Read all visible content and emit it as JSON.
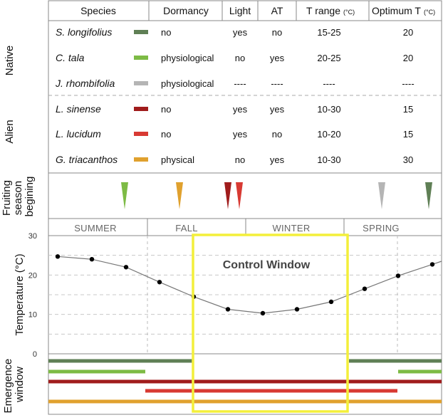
{
  "table": {
    "headers": {
      "species": "Species",
      "dormancy": "Dormancy",
      "light": "Light",
      "at": "AT",
      "trange": "T range",
      "trange_unit": "(°C)",
      "optimum": "Optimum T",
      "optimum_unit": "(°C)"
    },
    "groups": {
      "native": "Native",
      "alien": "Alien"
    },
    "rows": [
      {
        "species": "S. longifolius",
        "color": "#5f7f55",
        "dormancy": "no",
        "light": "yes",
        "at": "no",
        "trange": "15-25",
        "optimum": "20"
      },
      {
        "species": "C. tala",
        "color": "#7dbb45",
        "dormancy": "physiological",
        "light": "no",
        "at": "yes",
        "trange": "20-25",
        "optimum": "20"
      },
      {
        "species": "J. rhombifolia",
        "color": "#b5b5b5",
        "dormancy": "physiological",
        "light": "----",
        "at": "----",
        "trange": "----",
        "optimum": "----"
      },
      {
        "species": "L. sinense",
        "color": "#a01c1c",
        "dormancy": "no",
        "light": "yes",
        "at": "yes",
        "trange": "10-30",
        "optimum": "15"
      },
      {
        "species": "L. lucidum",
        "color": "#d83a33",
        "dormancy": "no",
        "light": "yes",
        "at": "no",
        "trange": "10-20",
        "optimum": "15"
      },
      {
        "species": "G. triacanthos",
        "color": "#e0a12e",
        "dormancy": "physical",
        "light": "no",
        "at": "yes",
        "trange": "10-30",
        "optimum": "30"
      }
    ]
  },
  "fruiting": {
    "label_lines": [
      "Fruiting",
      "season",
      "begining"
    ],
    "markers": [
      {
        "species": "C. tala",
        "x": 175,
        "color": "#7dbb45"
      },
      {
        "species": "G. triacanthos",
        "x": 252,
        "color": "#e0a12e"
      },
      {
        "species": "L. sinense",
        "x": 320,
        "color": "#a01c1c"
      },
      {
        "species": "L. lucidum",
        "x": 336,
        "color": "#d83a33"
      },
      {
        "species": "J. rhombifolia",
        "x": 536,
        "color": "#b5b5b5"
      },
      {
        "species": "S. longifolius",
        "x": 602,
        "color": "#5f7f55"
      }
    ]
  },
  "seasons": [
    "SUMMER",
    "FALL",
    "WINTER",
    "SPRING"
  ],
  "chart_data": {
    "type": "line",
    "ylabel": "Temperature (°C)",
    "yticks": [
      0,
      10,
      20,
      30
    ],
    "ylim": [
      0,
      30
    ],
    "points": [
      {
        "x": 81,
        "y": 24.7
      },
      {
        "x": 129,
        "y": 24.0
      },
      {
        "x": 177,
        "y": 22.0
      },
      {
        "x": 224,
        "y": 18.2
      },
      {
        "x": 272,
        "y": 14.5
      },
      {
        "x": 320,
        "y": 11.3
      },
      {
        "x": 369,
        "y": 10.3
      },
      {
        "x": 417,
        "y": 11.3
      },
      {
        "x": 465,
        "y": 13.2
      },
      {
        "x": 512,
        "y": 16.5
      },
      {
        "x": 559,
        "y": 19.8
      },
      {
        "x": 607,
        "y": 22.7
      }
    ],
    "line_end_y": 23.5,
    "control_window_label": "Control Window"
  },
  "emergence": {
    "label_lines": [
      "Emergence",
      "window"
    ],
    "bars": [
      {
        "species": "S. longifolius",
        "color": "#5f7f55",
        "ranges": [
          [
            68,
            270
          ],
          [
            490,
            620
          ]
        ]
      },
      {
        "species": "C. tala",
        "color": "#7dbb45",
        "ranges": [
          [
            68,
            204
          ],
          [
            559,
            620
          ]
        ]
      },
      {
        "species": "L. sinense",
        "color": "#a01c1c",
        "ranges": [
          [
            68,
            620
          ]
        ]
      },
      {
        "species": "L. lucidum",
        "color": "#d83a33",
        "ranges": [
          [
            204,
            558
          ]
        ]
      },
      {
        "species": "G. triacanthos",
        "color": "#e0a12e",
        "ranges": [
          [
            68,
            620
          ]
        ]
      }
    ]
  }
}
